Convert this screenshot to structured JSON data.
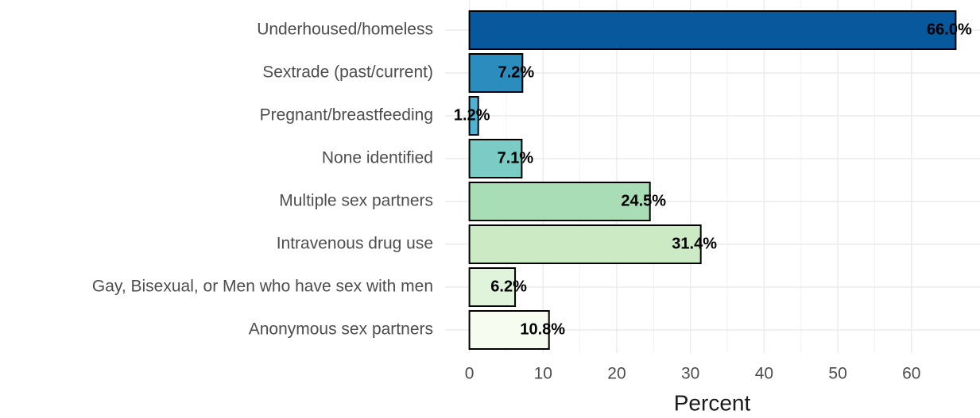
{
  "chart_data": {
    "type": "bar",
    "orientation": "horizontal",
    "x_label": "Percent",
    "categories": [
      "Underhoused/homeless",
      "Sextrade (past/current)",
      "Pregnant/breastfeeding",
      "None identified",
      "Multiple sex partners",
      "Intravenous drug use",
      "Gay, Bisexual, or Men who have sex with men",
      "Anonymous sex partners"
    ],
    "values": [
      66.0,
      7.2,
      1.2,
      7.1,
      24.5,
      31.4,
      6.2,
      10.8
    ],
    "value_labels": [
      "66.0%",
      "7.2%",
      "1.2%",
      "7.1%",
      "24.5%",
      "31.4%",
      "6.2%",
      "10.8%"
    ],
    "colors": [
      "#08589e",
      "#2b8cbe",
      "#4eb3d3",
      "#7bccc4",
      "#a8ddb5",
      "#ccebc5",
      "#e0f3db",
      "#f7fcf0"
    ],
    "xlim": [
      -3.3,
      69.3
    ],
    "xticks": [
      0,
      10,
      20,
      30,
      40,
      50,
      60
    ],
    "grid": true
  }
}
